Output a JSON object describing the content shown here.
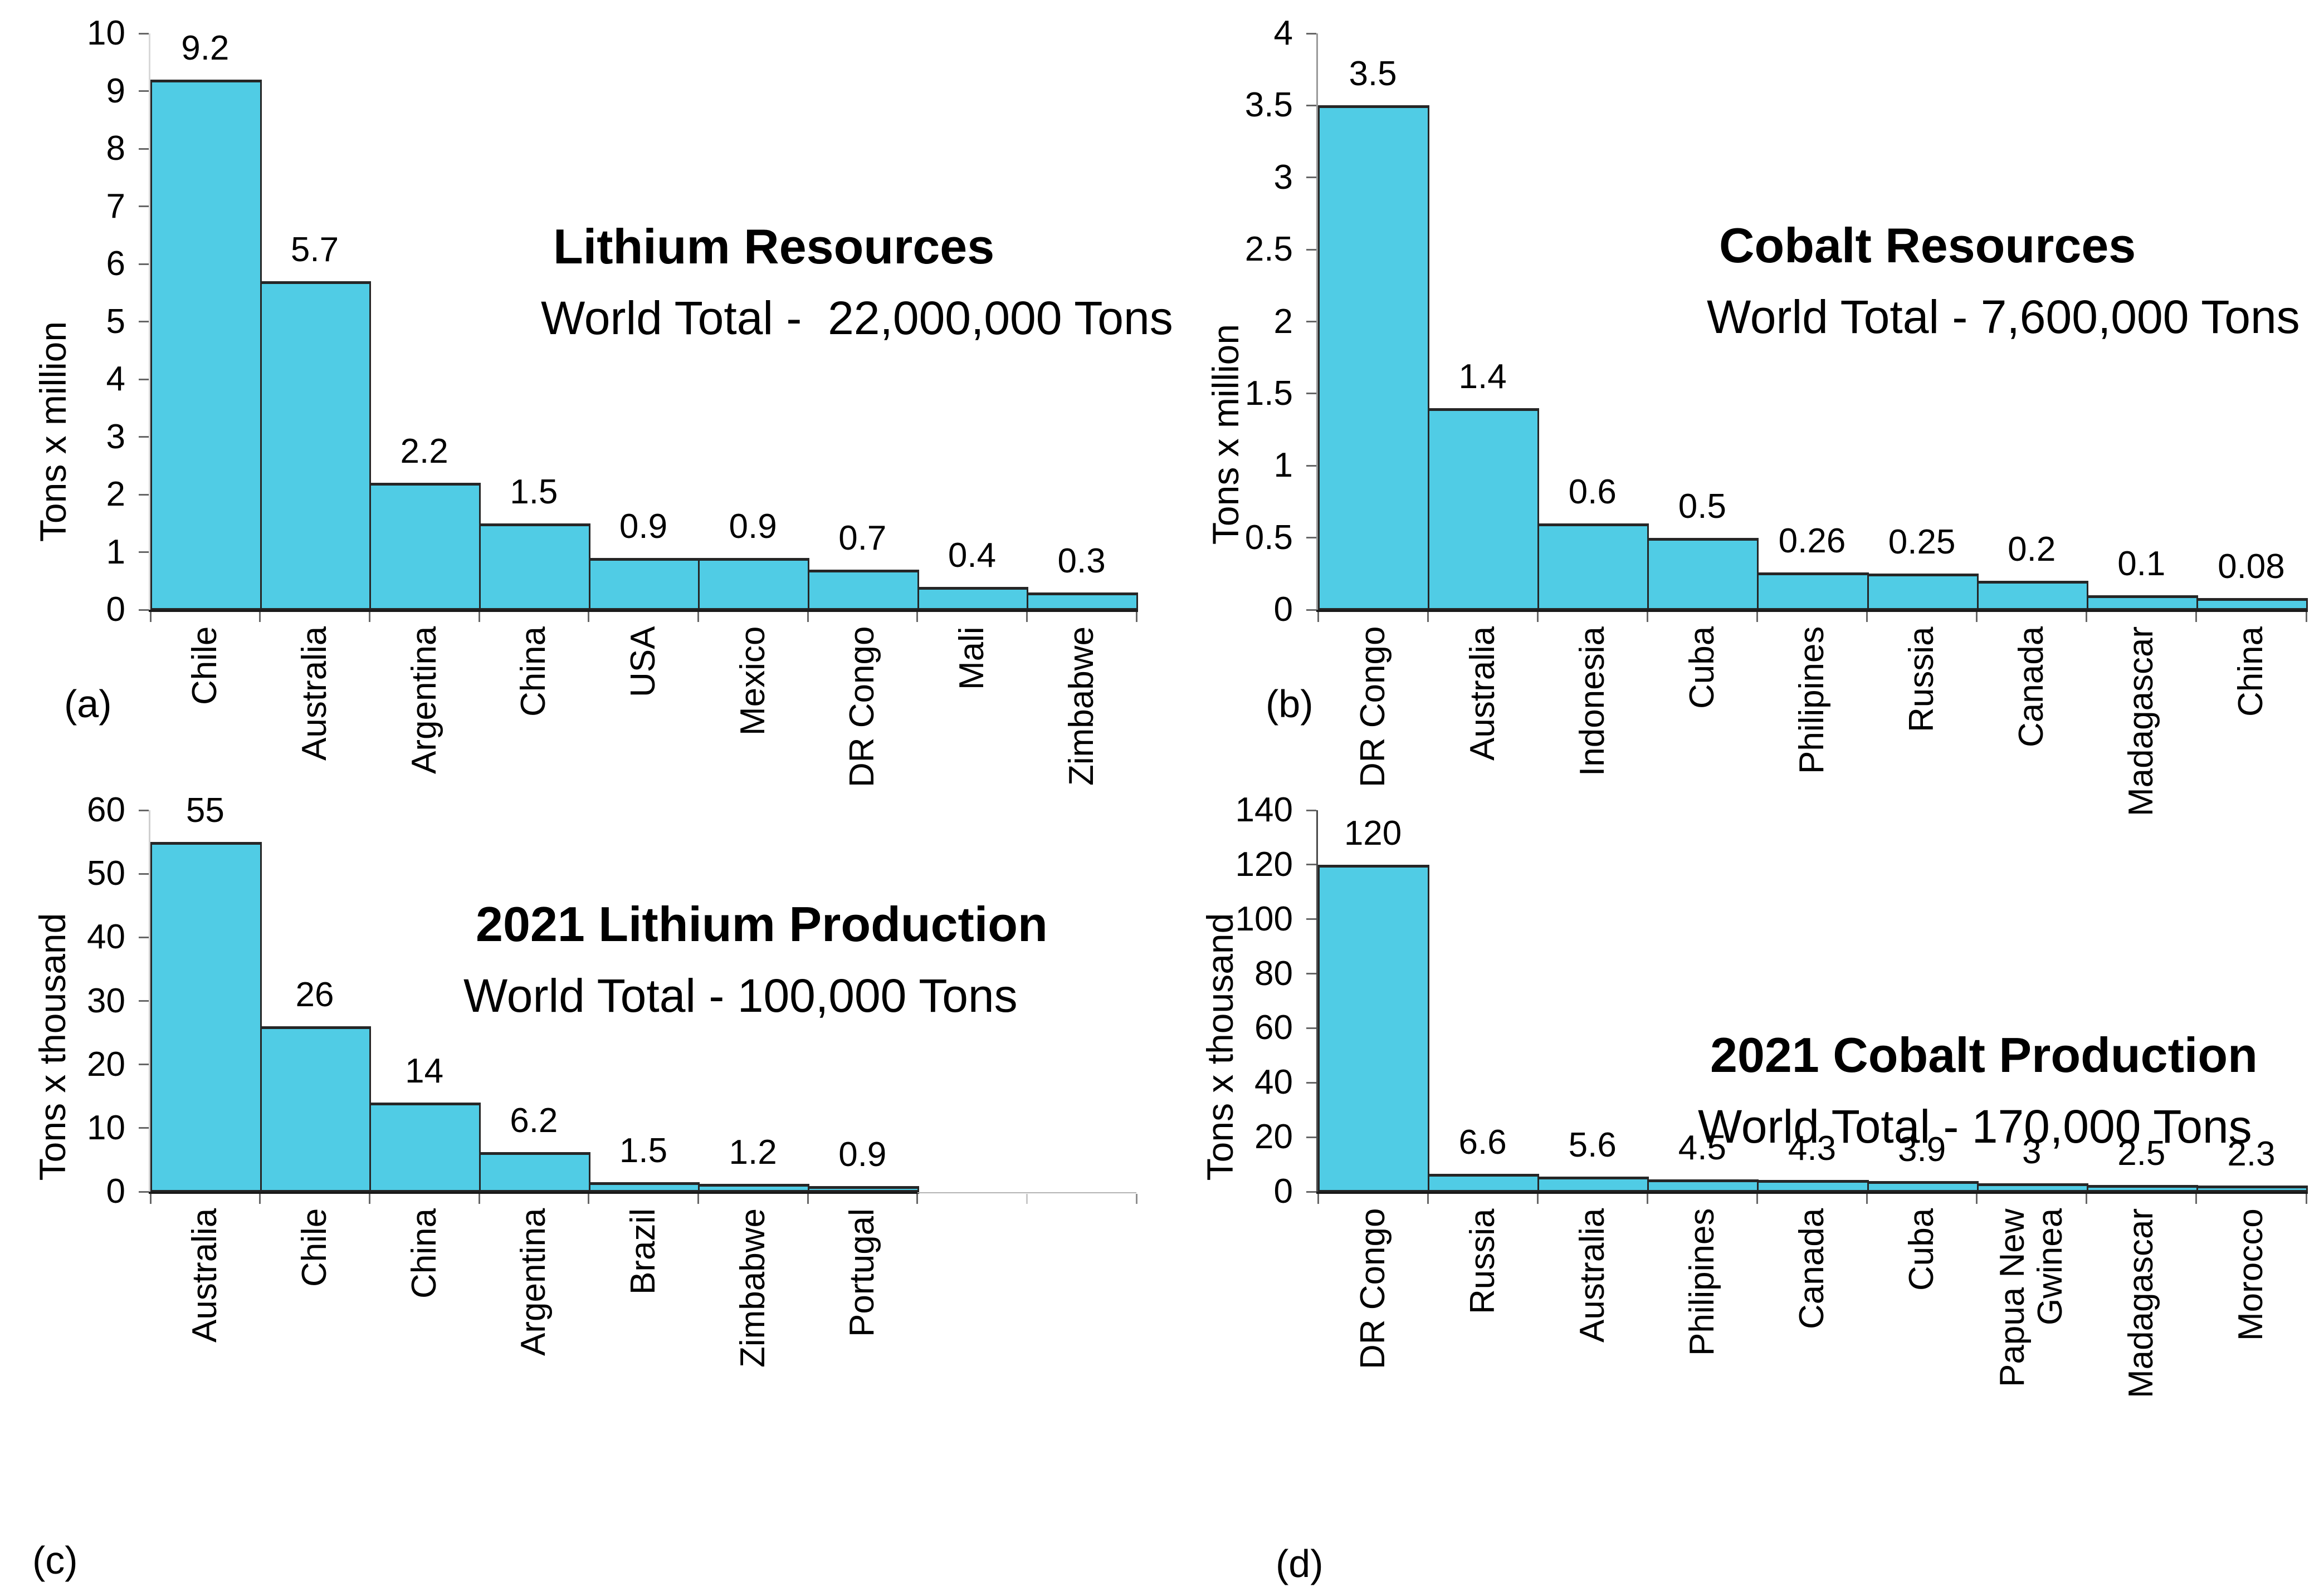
{
  "figure": {
    "background": "#ffffff",
    "bar_fill": "#50CCE5",
    "bar_border": "#262626"
  },
  "chart_data": [
    {
      "panel_label": "(a)",
      "type": "bar",
      "title": "Lithium Resources",
      "subtitle": "World Total -  22,000,000 Tons",
      "ylabel": "Tons x million",
      "xlabel": "",
      "ylim": [
        0,
        10
      ],
      "yticks": [
        "0",
        "1",
        "2",
        "3",
        "4",
        "5",
        "6",
        "7",
        "8",
        "9",
        "10"
      ],
      "categories": [
        "Chile",
        "Australia",
        "Argentina",
        "China",
        "USA",
        "Mexico",
        "DR Congo",
        "Mali",
        "Zimbabwe"
      ],
      "values": [
        9.2,
        5.7,
        2.2,
        1.5,
        0.9,
        0.9,
        0.7,
        0.4,
        0.3
      ],
      "value_labels": [
        "9.2",
        "5.7",
        "2.2",
        "1.5",
        "0.9",
        "0.9",
        "0.7",
        "0.4",
        "0.3"
      ],
      "axis_slots": 9,
      "grid": false,
      "legend": null
    },
    {
      "panel_label": "(b)",
      "type": "bar",
      "title": "Cobalt Resources",
      "subtitle": "World Total - 7,600,000 Tons",
      "ylabel": "Tons x million",
      "xlabel": "",
      "ylim": [
        0,
        4
      ],
      "yticks": [
        "0",
        "0.5",
        "1",
        "1.5",
        "2",
        "2.5",
        "3",
        "3.5",
        "4"
      ],
      "categories": [
        "DR Congo",
        "Australia",
        "Indonesia",
        "Cuba",
        "Philipines",
        "Russia",
        "Canada",
        "Madagascar",
        "China"
      ],
      "values": [
        3.5,
        1.4,
        0.6,
        0.5,
        0.26,
        0.25,
        0.2,
        0.1,
        0.08
      ],
      "value_labels": [
        "3.5",
        "1.4",
        "0.6",
        "0.5",
        "0.26",
        "0.25",
        "0.2",
        "0.1",
        "0.08"
      ],
      "axis_slots": 9,
      "grid": false,
      "legend": null
    },
    {
      "panel_label": "(c)",
      "type": "bar",
      "title": "2021 Lithium Production",
      "subtitle": "World Total - 100,000 Tons",
      "ylabel": "Tons x thousand",
      "xlabel": "",
      "ylim": [
        0,
        60
      ],
      "yticks": [
        "0",
        "10",
        "20",
        "30",
        "40",
        "50",
        "60"
      ],
      "categories": [
        "Australia",
        "Chile",
        "China",
        "Argentina",
        "Brazil",
        "Zimbabwe",
        "Portugal"
      ],
      "values": [
        55,
        26,
        14,
        6.2,
        1.5,
        1.2,
        0.9
      ],
      "value_labels": [
        "55",
        "26",
        "14",
        "6.2",
        "1.5",
        "1.2",
        "0.9"
      ],
      "axis_slots": 9,
      "grid": false,
      "legend": null
    },
    {
      "panel_label": "(d)",
      "type": "bar",
      "title": "2021 Cobalt Production",
      "subtitle": "World Total - 170,000 Tons",
      "ylabel": "Tons x thousand",
      "xlabel": "",
      "ylim": [
        0,
        140
      ],
      "yticks": [
        "0",
        "20",
        "40",
        "60",
        "80",
        "100",
        "120",
        "140"
      ],
      "categories": [
        "DR Congo",
        "Russia",
        "Australia",
        "Philipines",
        "Canada",
        "Cuba",
        "Papua New\nGwinea",
        "Madagascar",
        "Morocco"
      ],
      "values": [
        120,
        6.6,
        5.6,
        4.5,
        4.3,
        3.9,
        3,
        2.5,
        2.3
      ],
      "value_labels": [
        "120",
        "6.6",
        "5.6",
        "4.5",
        "4.3",
        "3.9",
        "3",
        "2.5",
        "2.3"
      ],
      "axis_slots": 9,
      "grid": false,
      "legend": null
    }
  ]
}
